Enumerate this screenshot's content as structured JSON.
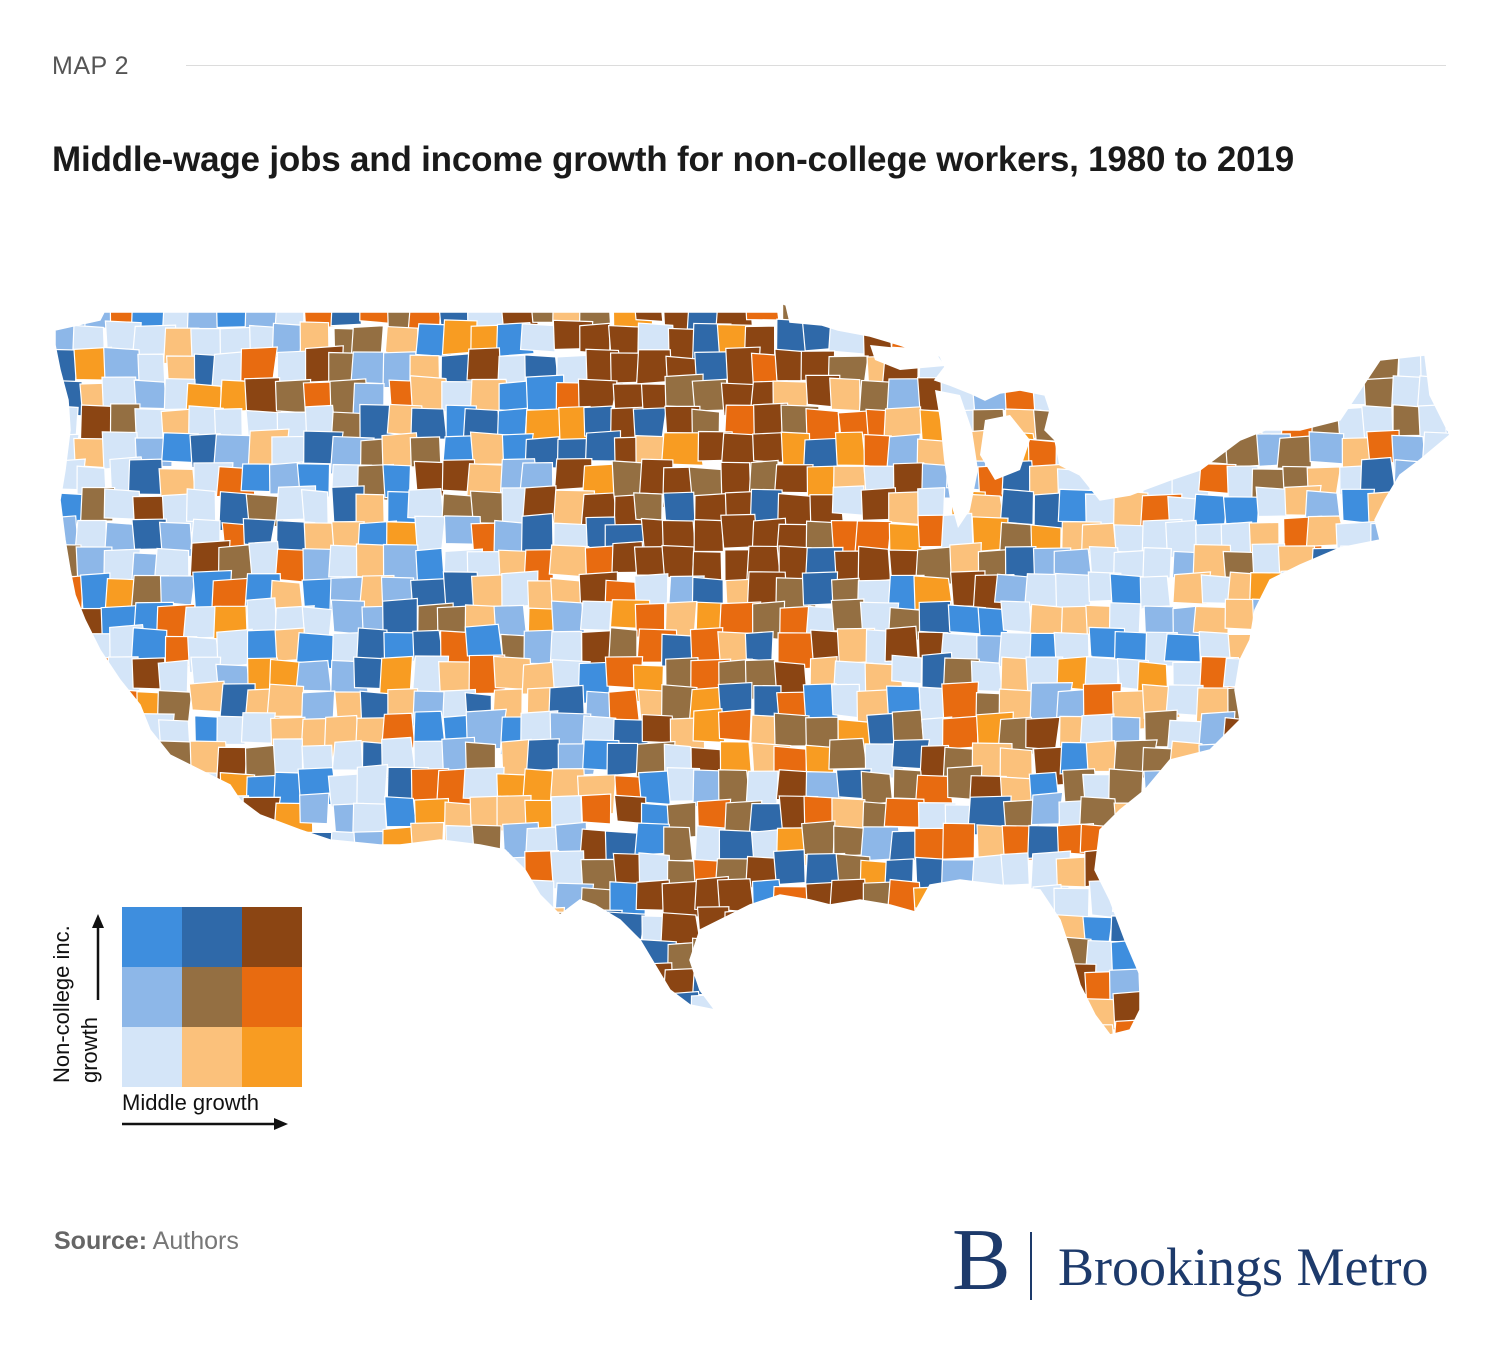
{
  "header": {
    "kicker": "MAP 2",
    "title": "Middle-wage jobs and income growth for non-college workers, 1980 to 2019"
  },
  "legend": {
    "y_label_line1": "Non-college inc.",
    "y_label_line2": "growth",
    "x_label": "Middle growth",
    "grid_colors": [
      [
        "#3e8ede",
        "#2f69a9",
        "#8b4513"
      ],
      [
        "#8db7e8",
        "#946f42",
        "#e86b10"
      ],
      [
        "#d4e5f8",
        "#fbc17b",
        "#f89c22"
      ]
    ]
  },
  "colors": {
    "background": "#ffffff",
    "region_border": "#ffffff",
    "brand": "#1d3a6b"
  },
  "footer": {
    "source_label": "Source:",
    "source_value": "Authors",
    "brand_mark": "B",
    "brand_name": "Brookings Metro"
  }
}
